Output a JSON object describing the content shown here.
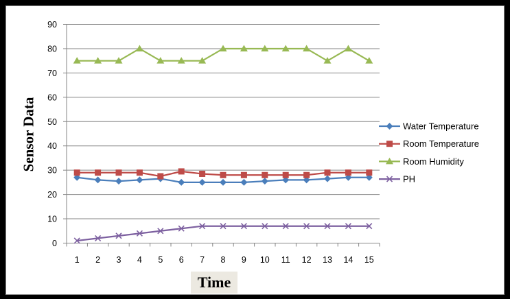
{
  "chart_data": {
    "type": "line",
    "categories": [
      "1",
      "2",
      "3",
      "4",
      "5",
      "6",
      "7",
      "8",
      "9",
      "10",
      "11",
      "12",
      "13",
      "14",
      "15"
    ],
    "series": [
      {
        "name": "Water Temperature",
        "values": [
          27,
          26,
          25.5,
          26,
          26.5,
          25,
          25,
          25,
          25,
          25.5,
          26,
          26,
          26.5,
          27,
          27
        ],
        "color": "#4a7ebb",
        "marker": "diamond"
      },
      {
        "name": "Room Temperature",
        "values": [
          29,
          29,
          29,
          29,
          27.5,
          29.5,
          28.5,
          28,
          28,
          28,
          28,
          28,
          29,
          29,
          29
        ],
        "color": "#be4b48",
        "marker": "square"
      },
      {
        "name": "Room Humidity",
        "values": [
          75,
          75,
          75,
          80,
          75,
          75,
          75,
          80,
          80,
          80,
          80,
          80,
          75,
          80,
          75
        ],
        "color": "#98b954",
        "marker": "triangle"
      },
      {
        "name": "PH",
        "values": [
          1,
          2,
          3,
          4,
          5,
          6,
          7,
          7,
          7,
          7,
          7,
          7,
          7,
          7,
          7
        ],
        "color": "#7d60a0",
        "marker": "x"
      }
    ],
    "xlabel": "Time",
    "ylabel": "Sensor Data",
    "ylim": [
      0,
      90
    ],
    "yticks": [
      0,
      10,
      20,
      30,
      40,
      50,
      60,
      70,
      80,
      90
    ],
    "grid": true,
    "legend": "right"
  }
}
